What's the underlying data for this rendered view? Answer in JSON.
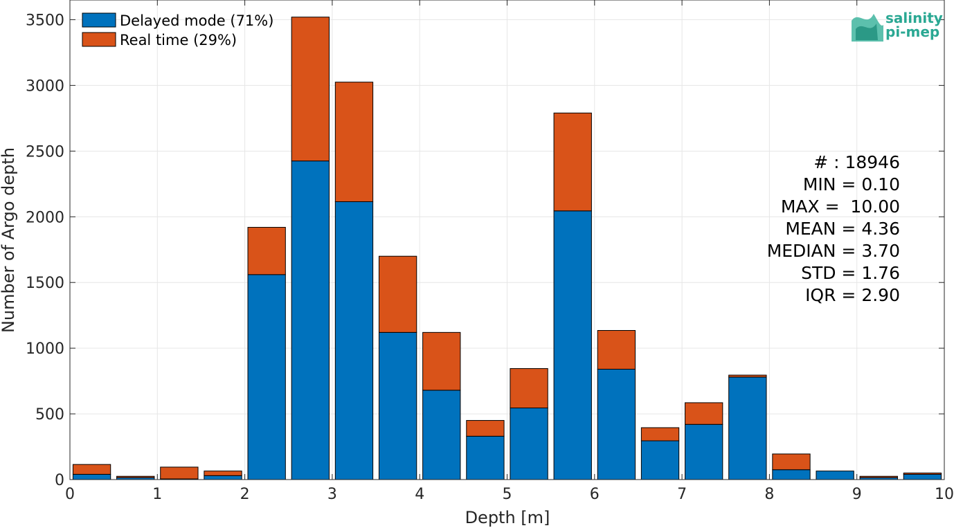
{
  "chart_data": {
    "type": "bar",
    "stacked": true,
    "xlabel": "Depth [m]",
    "ylabel": "Number of Argo depth",
    "xlim": [
      0,
      10
    ],
    "ylim": [
      0,
      3650
    ],
    "xticks": [
      0,
      1,
      2,
      3,
      4,
      5,
      6,
      7,
      8,
      9,
      10
    ],
    "yticks": [
      0,
      500,
      1000,
      1500,
      2000,
      2500,
      3000,
      3500
    ],
    "grid": true,
    "legend_position": "top-left",
    "bin_width": 0.5,
    "x": [
      0.25,
      0.75,
      1.25,
      1.75,
      2.25,
      2.75,
      3.25,
      3.75,
      4.25,
      4.75,
      5.25,
      5.75,
      6.25,
      6.75,
      7.25,
      7.75,
      8.25,
      8.75,
      9.25,
      9.75
    ],
    "series": [
      {
        "name": "Delayed mode (71%)",
        "color": "#0072bd",
        "values": [
          40,
          15,
          5,
          30,
          1560,
          2425,
          2115,
          1120,
          680,
          330,
          545,
          2045,
          840,
          295,
          420,
          780,
          75,
          65,
          15,
          40
        ]
      },
      {
        "name": "Real time (29%)",
        "color": "#d95319",
        "values": [
          75,
          10,
          90,
          35,
          360,
          1095,
          910,
          580,
          440,
          120,
          300,
          745,
          295,
          100,
          165,
          15,
          120,
          0,
          10,
          10
        ]
      }
    ],
    "annotations": [
      "# : 18946",
      "MIN = 0.10",
      "MAX =  10.00",
      "MEAN = 4.36",
      "MEDIAN = 3.70",
      "STD = 1.76",
      "IQR = 2.90"
    ]
  },
  "logo": {
    "line1": "salinity",
    "line2": "pi-mep"
  }
}
